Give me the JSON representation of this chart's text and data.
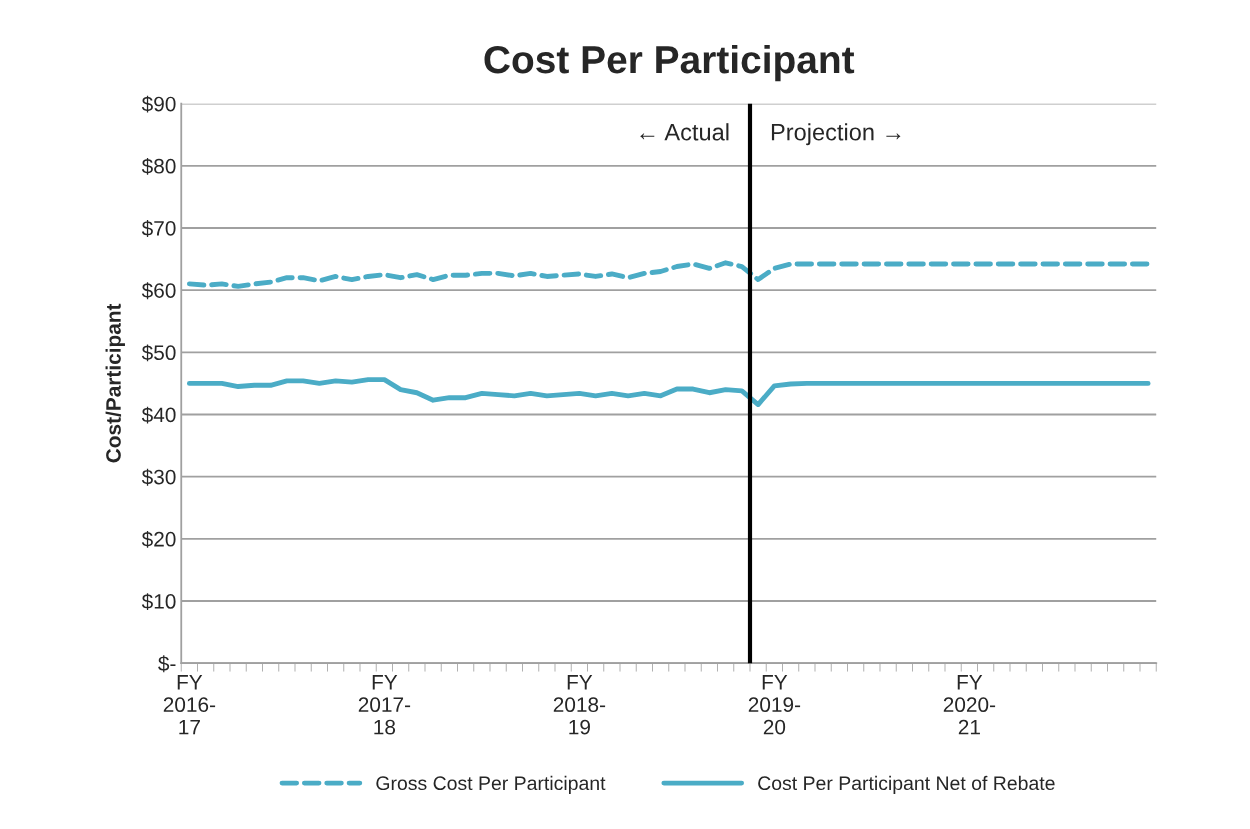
{
  "chart_data": {
    "type": "line",
    "title": "Cost Per Participant",
    "ylabel": "Cost/Participant",
    "categories": [
      "FY\n2016-\n17",
      null,
      null,
      null,
      null,
      null,
      null,
      null,
      null,
      null,
      null,
      null,
      "FY\n2017-\n18",
      null,
      null,
      null,
      null,
      null,
      null,
      null,
      null,
      null,
      null,
      null,
      "FY\n2018-\n19",
      null,
      null,
      null,
      null,
      null,
      null,
      null,
      null,
      null,
      null,
      null,
      "FY\n2019-\n20",
      null,
      null,
      null,
      null,
      null,
      null,
      null,
      null,
      null,
      null,
      null,
      "FY\n2020-\n21",
      null,
      null,
      null,
      null,
      null,
      null,
      null,
      null,
      null,
      null,
      null
    ],
    "series": [
      {
        "name": "Gross Cost Per Participant",
        "color": "#4bacc6",
        "line_style": "dashed",
        "values": [
          61,
          60.8,
          61,
          60.6,
          61,
          61.3,
          62,
          62,
          61.5,
          62.2,
          61.7,
          62.2,
          62.5,
          62,
          62.5,
          61.7,
          62.4,
          62.4,
          62.7,
          62.7,
          62.3,
          62.7,
          62.2,
          62.4,
          62.6,
          62.2,
          62.6,
          62,
          62.7,
          63,
          63.8,
          64.2,
          63.5,
          64.4,
          63.8,
          61.7,
          63.5,
          64.2,
          64.2,
          64.2,
          64.2,
          64.2,
          64.2,
          64.2,
          64.2,
          64.2,
          64.2,
          64.2,
          64.2,
          64.2,
          64.2,
          64.2,
          64.2,
          64.2,
          64.2,
          64.2,
          64.2,
          64.2,
          64.2,
          64.2
        ]
      },
      {
        "name": "Cost Per Participant Net of Rebate",
        "color": "#4bacc6",
        "line_style": "solid",
        "values": [
          45,
          45,
          45,
          44.5,
          44.7,
          44.7,
          45.4,
          45.4,
          45,
          45.4,
          45.2,
          45.6,
          45.6,
          44,
          43.5,
          42.3,
          42.7,
          42.7,
          43.4,
          43.2,
          43,
          43.4,
          43,
          43.2,
          43.4,
          43,
          43.4,
          43,
          43.4,
          43,
          44.1,
          44.1,
          43.5,
          44,
          43.8,
          41.6,
          44.6,
          44.9,
          45,
          45,
          45,
          45,
          45,
          45,
          45,
          45,
          45,
          45,
          45,
          45,
          45,
          45,
          45,
          45,
          45,
          45,
          45,
          45,
          45,
          45
        ]
      }
    ],
    "ylim": [
      0,
      90
    ],
    "yticks": [
      {
        "value": 0,
        "label": "$-"
      },
      {
        "value": 10,
        "label": "$10"
      },
      {
        "value": 20,
        "label": "$20"
      },
      {
        "value": 30,
        "label": "$30"
      },
      {
        "value": 40,
        "label": "$40"
      },
      {
        "value": 50,
        "label": "$50"
      },
      {
        "value": 60,
        "label": "$60"
      },
      {
        "value": 70,
        "label": "$70"
      },
      {
        "value": 80,
        "label": "$80"
      },
      {
        "value": 90,
        "label": "$90"
      }
    ],
    "annotations": [
      "← Actual",
      "Projection →"
    ],
    "grid": "y",
    "legend": "bottom",
    "marker": "none"
  }
}
